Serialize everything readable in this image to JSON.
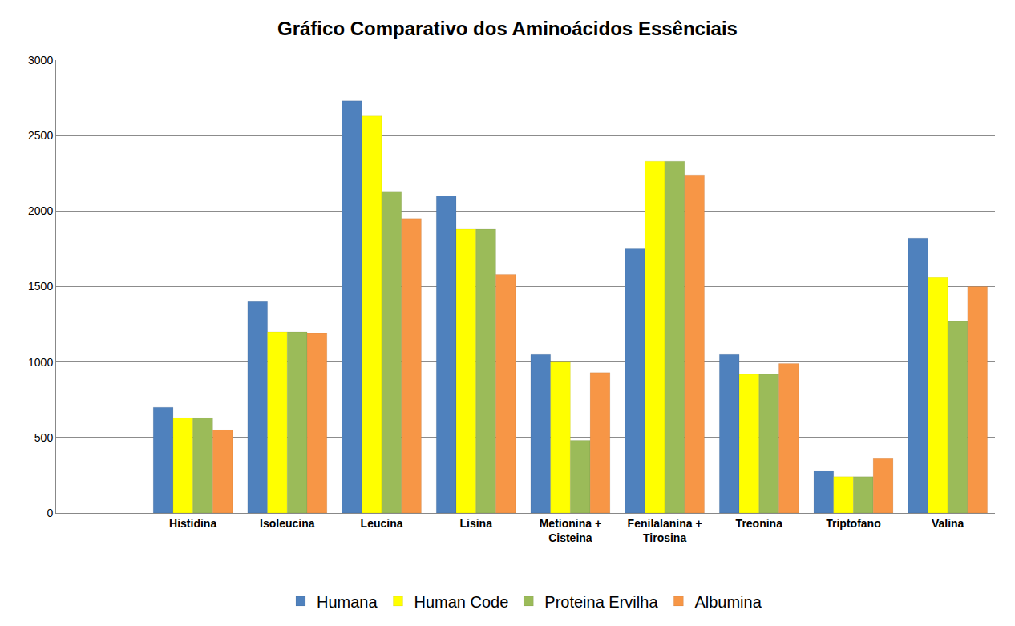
{
  "chart_data": {
    "type": "bar",
    "title": "Gráfico Comparativo dos Aminoácidos Essênciais",
    "categories": [
      "Histidina",
      "Isoleucina",
      "Leucina",
      "Lisina",
      "Metionina + Cisteina",
      "Fenilalanina + Tirosina",
      "Treonina",
      "Triptofano",
      "Valina"
    ],
    "series": [
      {
        "name": "Humana",
        "color": "#4f81bd",
        "values": [
          700,
          1400,
          2730,
          2100,
          1050,
          1750,
          1050,
          280,
          1820
        ]
      },
      {
        "name": "Human Code",
        "color": "#ffff00",
        "values": [
          630,
          1200,
          2630,
          1880,
          1000,
          2330,
          920,
          240,
          1560
        ]
      },
      {
        "name": "Proteina Ervilha",
        "color": "#9bbb59",
        "values": [
          630,
          1200,
          2130,
          1880,
          480,
          2330,
          920,
          240,
          1270
        ]
      },
      {
        "name": "Albumina",
        "color": "#f79646",
        "values": [
          550,
          1190,
          1950,
          1580,
          930,
          2240,
          990,
          360,
          1500
        ]
      }
    ],
    "ylim": [
      0,
      3000
    ],
    "yticks": [
      0,
      500,
      1000,
      1500,
      2000,
      2500,
      3000
    ],
    "grid": true,
    "legend": "bottom"
  }
}
